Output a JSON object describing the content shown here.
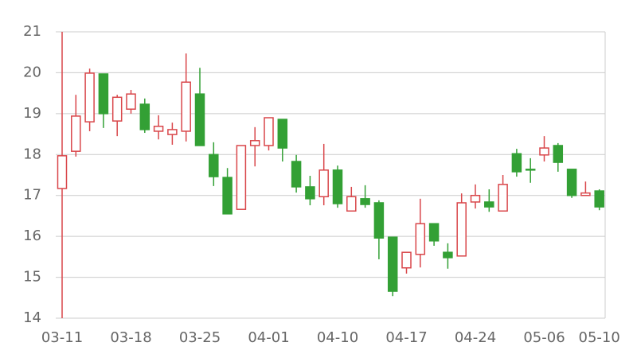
{
  "chart_data": {
    "type": "candlestick",
    "categories": [
      "03-11",
      null,
      null,
      null,
      null,
      "03-18",
      null,
      null,
      null,
      null,
      "03-25",
      null,
      null,
      null,
      null,
      "04-01",
      null,
      null,
      null,
      null,
      "04-10",
      null,
      null,
      null,
      null,
      "04-17",
      null,
      null,
      null,
      null,
      "04-24",
      null,
      null,
      null,
      null,
      "05-06",
      null,
      null,
      null,
      "05-10"
    ],
    "open": [
      17.17,
      18.08,
      18.8,
      19.97,
      18.82,
      19.11,
      19.23,
      18.57,
      18.49,
      18.57,
      19.48,
      18.0,
      17.44,
      16.66,
      18.22,
      18.22,
      18.86,
      17.83,
      17.21,
      16.97,
      17.62,
      16.62,
      16.92,
      16.82,
      15.98,
      15.23,
      15.56,
      16.31,
      15.61,
      15.52,
      16.84,
      16.84,
      16.62,
      18.02,
      17.64,
      17.99,
      18.22,
      17.64,
      17.0,
      17.11
    ],
    "high": [
      21,
      19.46,
      20.1,
      19.97,
      19.46,
      19.58,
      19.37,
      18.96,
      18.78,
      20.47,
      20.12,
      18.3,
      17.67,
      18.22,
      18.67,
      18.9,
      18.86,
      17.99,
      17.48,
      18.26,
      17.73,
      17.21,
      17.25,
      16.88,
      15.98,
      15.61,
      16.92,
      16.31,
      15.83,
      17.05,
      17.27,
      17.15,
      17.5,
      18.14,
      17.91,
      18.45,
      18.28,
      17.64,
      17.34,
      17.15
    ],
    "low": [
      14,
      17.95,
      18.57,
      18.65,
      18.45,
      19.0,
      18.53,
      18.37,
      18.24,
      18.32,
      18.22,
      17.23,
      16.55,
      16.66,
      17.71,
      18.1,
      17.83,
      17.07,
      16.76,
      16.76,
      16.7,
      16.62,
      16.7,
      15.44,
      14.54,
      15.09,
      15.24,
      15.77,
      15.21,
      15.52,
      16.68,
      16.6,
      16.62,
      17.46,
      17.31,
      17.83,
      17.58,
      16.94,
      17.0,
      16.64
    ],
    "close": [
      17.97,
      18.94,
      19.99,
      19.0,
      19.4,
      19.48,
      18.61,
      18.69,
      18.61,
      19.77,
      18.22,
      17.46,
      16.55,
      18.22,
      18.34,
      18.9,
      18.16,
      17.21,
      16.92,
      17.62,
      16.8,
      16.97,
      16.78,
      15.96,
      14.66,
      15.61,
      16.31,
      15.89,
      15.48,
      16.82,
      17.0,
      16.72,
      17.27,
      17.58,
      17.62,
      18.16,
      17.81,
      17.0,
      17.06,
      16.72
    ],
    "up_color": "#d9464a",
    "down_color": "#33a035",
    "ylim": [
      14,
      21
    ],
    "yticks": [
      14,
      15,
      16,
      17,
      18,
      19,
      20,
      21
    ],
    "grid": true
  }
}
